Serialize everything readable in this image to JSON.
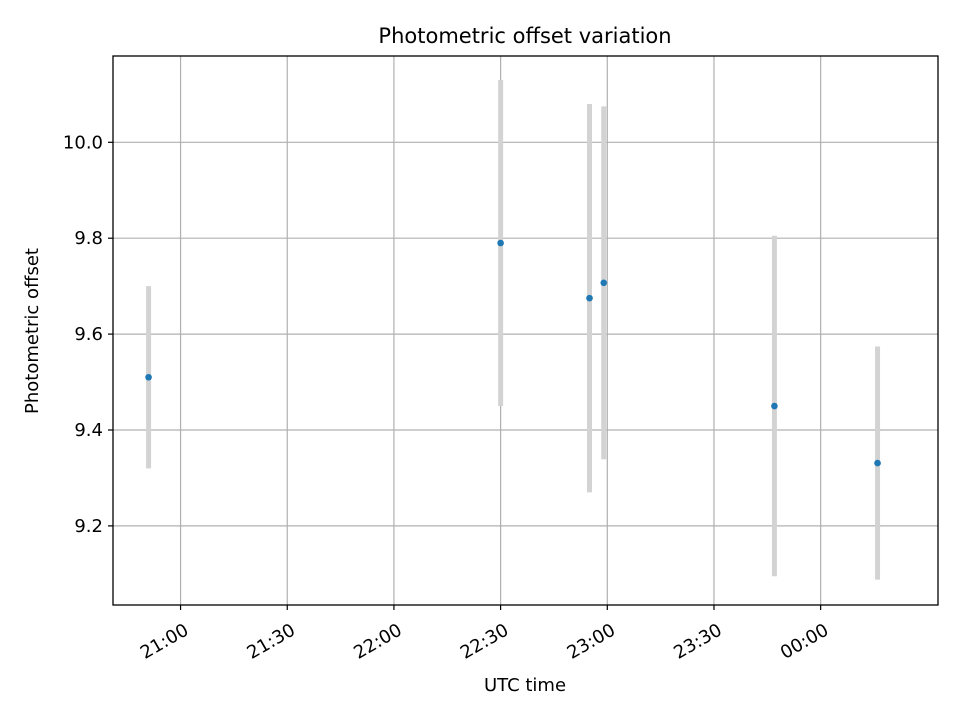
{
  "chart_data": {
    "type": "scatter",
    "title": "Photometric offset variation",
    "xlabel": "UTC time",
    "ylabel": "Photometric offset",
    "x_is_time": true,
    "xlim": [
      "20:41",
      "00:33"
    ],
    "ylim": [
      9.035,
      10.18
    ],
    "xticks": [
      "21:00",
      "21:30",
      "22:00",
      "22:30",
      "23:00",
      "23:30",
      "00:00"
    ],
    "yticks": [
      "9.2",
      "9.4",
      "9.6",
      "9.8",
      "10.0"
    ],
    "grid": true,
    "legend": "none",
    "series": [
      {
        "marker_color": "#1f77b4",
        "errorbar_color": "#d3d3d3",
        "points": [
          {
            "x": "20:51",
            "y": 9.51,
            "err": 0.19
          },
          {
            "x": "22:30",
            "y": 9.79,
            "err": 0.34
          },
          {
            "x": "22:55",
            "y": 9.675,
            "err": 0.405
          },
          {
            "x": "22:59",
            "y": 9.707,
            "err": 0.368
          },
          {
            "x": "23:47",
            "y": 9.45,
            "err": 0.355
          },
          {
            "x": "00:16",
            "y": 9.331,
            "err": 0.243
          }
        ]
      }
    ]
  }
}
